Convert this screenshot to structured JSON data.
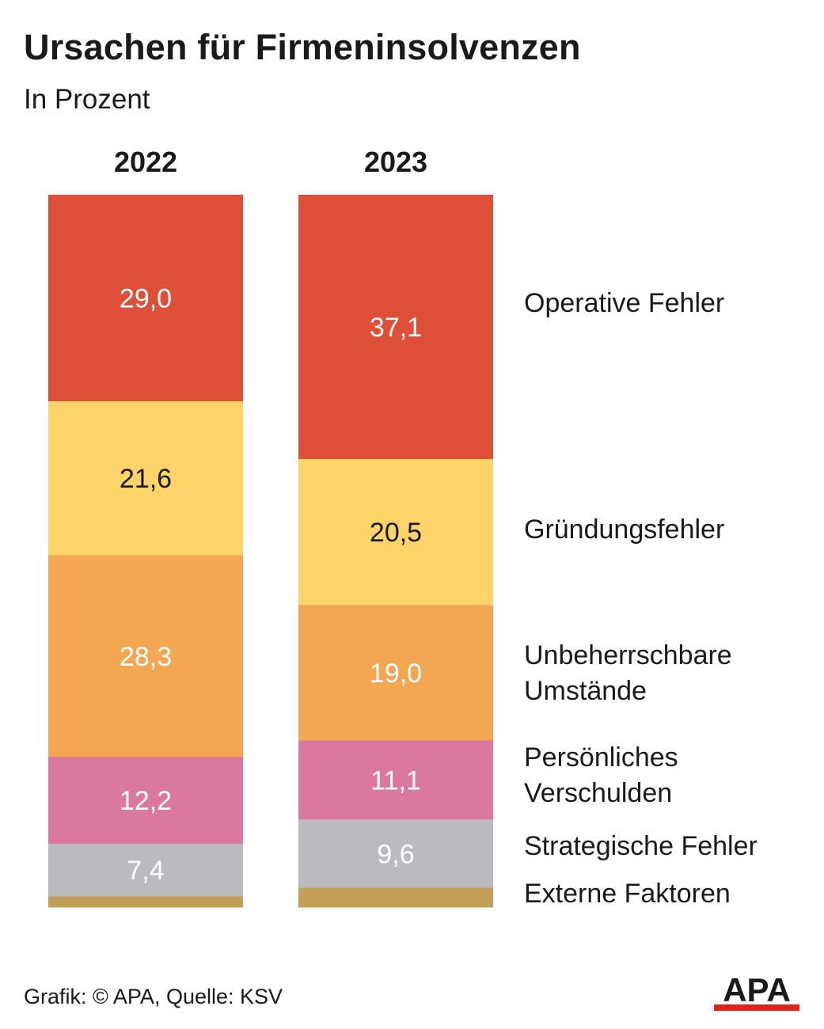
{
  "header": {
    "title": "Ursachen für Firmeninsolvenzen",
    "subtitle": "In Prozent"
  },
  "footer": {
    "source": "Grafik: © APA, Quelle: KSV",
    "logo_text": "APA"
  },
  "chart_data": {
    "type": "bar",
    "stacked": true,
    "title": "Ursachen für Firmeninsolvenzen",
    "subtitle": "In Prozent",
    "categories": [
      "2022",
      "2023"
    ],
    "series": [
      {
        "name": "Operative Fehler",
        "values": [
          29.0,
          37.1
        ],
        "labels": [
          "29,0",
          "37,1"
        ],
        "color": "#dd4f36",
        "label_color": "#ffffff"
      },
      {
        "name": "Gründungsfehler",
        "values": [
          21.6,
          20.5
        ],
        "labels": [
          "21,6",
          "20,5"
        ],
        "color": "#fcd469",
        "label_color": "#1a1a1a"
      },
      {
        "name": "Unbeherrschbare Umstände",
        "values": [
          28.3,
          19.0
        ],
        "labels": [
          "28,3",
          "19,0"
        ],
        "color": "#f4a753",
        "label_color": "#ffffff"
      },
      {
        "name": "Persönliches Verschulden",
        "values": [
          12.2,
          11.1
        ],
        "labels": [
          "12,2",
          "11,1"
        ],
        "color": "#da789f",
        "label_color": "#ffffff"
      },
      {
        "name": "Strategische Fehler",
        "values": [
          7.4,
          9.6
        ],
        "labels": [
          "7,4",
          "9,6"
        ],
        "color": "#bbbbbf",
        "label_color": "#ffffff"
      },
      {
        "name": "Externe Faktoren",
        "values": [
          1.5,
          2.7
        ],
        "labels": [
          "",
          ""
        ],
        "color": "#c49f56",
        "label_color": "#ffffff"
      }
    ],
    "legend_lines": [
      [
        "Operative Fehler"
      ],
      [
        "Gründungsfehler"
      ],
      [
        "Unbeherrschbare",
        "Umstände"
      ],
      [
        "Persönliches",
        "Verschulden"
      ],
      [
        "Strategische Fehler"
      ],
      [
        "Externe Faktoren"
      ]
    ],
    "ylim": [
      0,
      100
    ],
    "grid": false,
    "legend": "right"
  }
}
